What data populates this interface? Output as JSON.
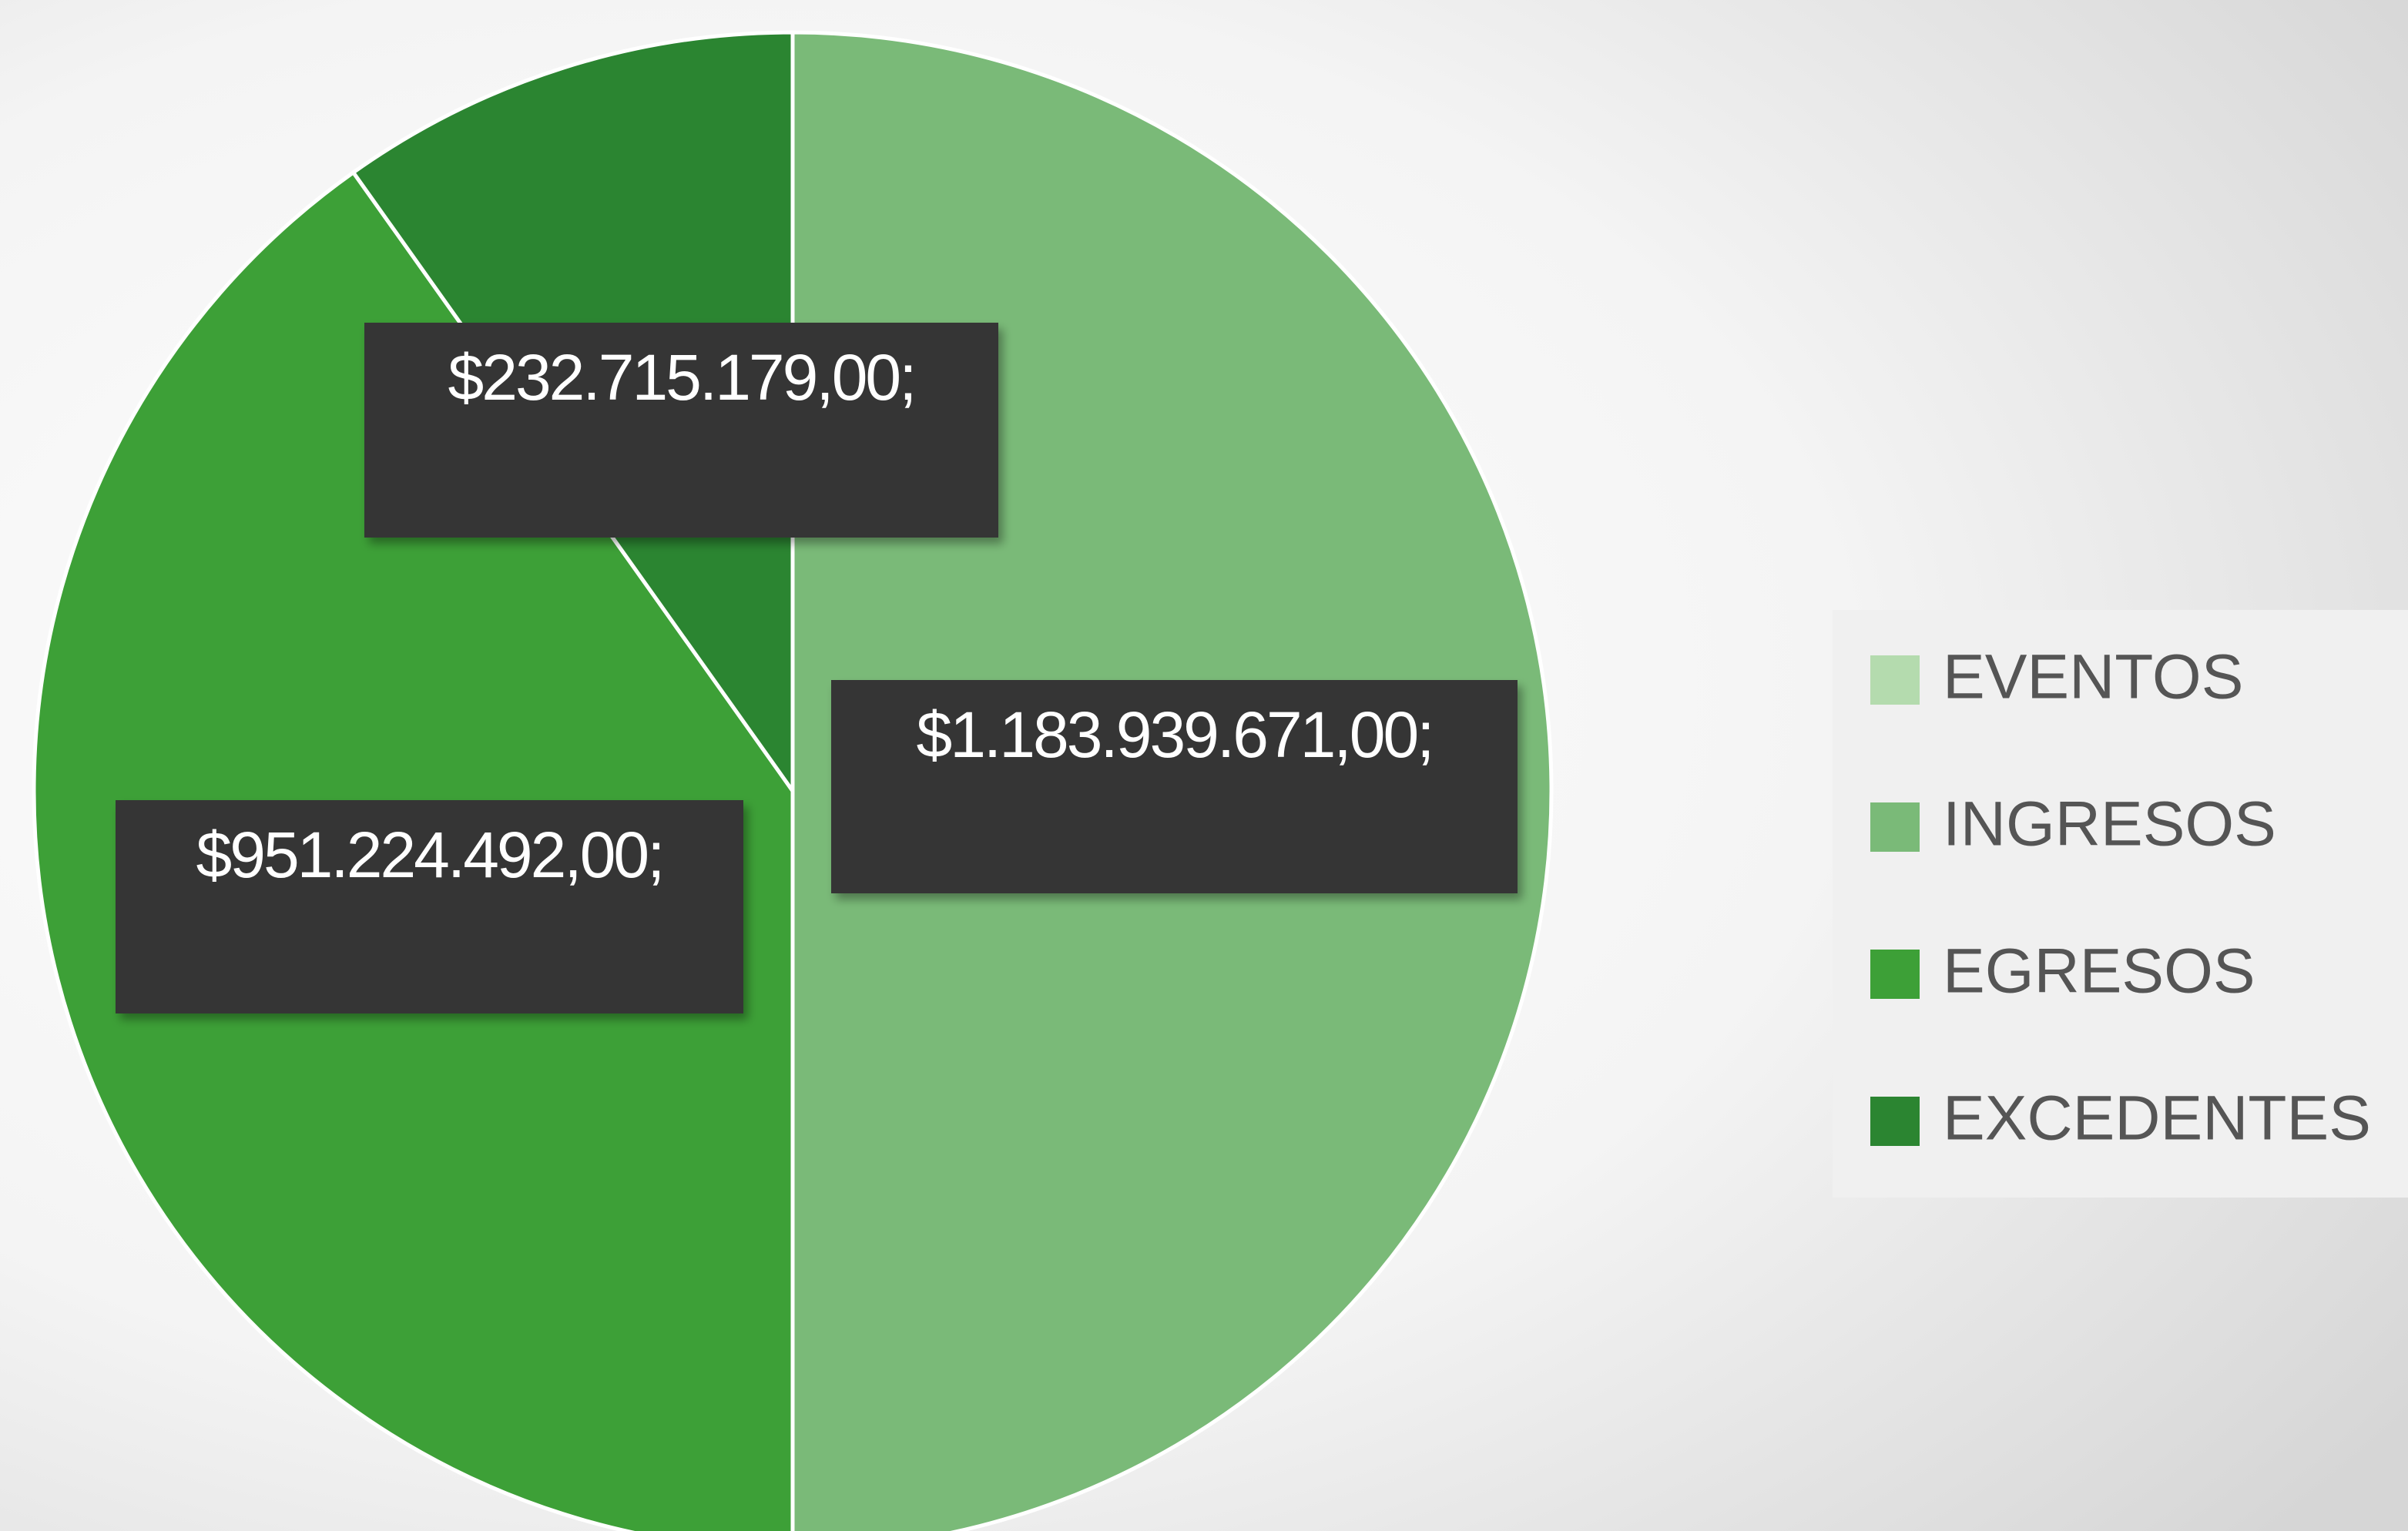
{
  "chart_data": {
    "type": "pie",
    "categories": [
      "EVENTOS",
      "INGRESOS",
      "EGRESOS",
      "EXCEDENTES"
    ],
    "values": [
      null,
      1183939671,
      951224492,
      232715179
    ],
    "value_labels": [
      null,
      "$1.183.939.671,00;",
      "$951.224.492,00;",
      "$232.715.179,00;"
    ],
    "colors": [
      "#b4dbae",
      "#7aba78",
      "#3da037",
      "#2b8531"
    ],
    "legend": "right"
  }
}
